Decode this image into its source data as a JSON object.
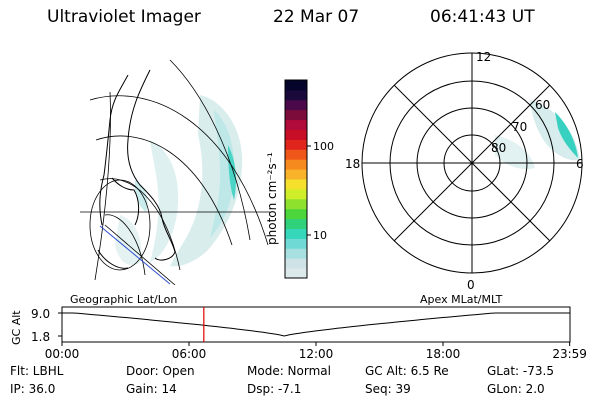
{
  "header": {
    "title": "Ultraviolet Imager",
    "date": "22 Mar 07",
    "time": "06:41:43 UT"
  },
  "colorbar": {
    "unit": "photon cm⁻²s⁻¹",
    "ticks": [
      "100",
      "10"
    ],
    "colors": [
      "#dde8ea",
      "#cfe3e6",
      "#a8e0e2",
      "#6fdad5",
      "#35d6b9",
      "#2fd27a",
      "#4cd63c",
      "#8ee22e",
      "#cfee2a",
      "#f5e12c",
      "#f8b32a",
      "#f68a1e",
      "#ee561a",
      "#e0251c",
      "#c80d26",
      "#b10b3a",
      "#7c0d3a",
      "#4a0a4a",
      "#1a0a3c",
      "#05042a"
    ]
  },
  "left_map": {
    "label": "Geographic Lat/Lon"
  },
  "right_map": {
    "label": "Apex MLat/MLT",
    "mlt_labels": {
      "top": "12",
      "left": "18",
      "right": "6",
      "bottom": "0"
    },
    "lat_labels": [
      "60",
      "70",
      "80"
    ]
  },
  "gc_plot": {
    "ylabel": "GC Alt",
    "yticks": [
      "9.0",
      "1.8"
    ],
    "xticks": [
      "00:00",
      "06:00",
      "12:00",
      "18:00",
      "23:59"
    ],
    "current_time_hours": 6.7
  },
  "info": {
    "flt": "Flt: LBHL",
    "ip": "IP: 36.0",
    "door": "Door: Open",
    "gain": "Gain: 14",
    "mode": "Mode: Normal",
    "dsp": "Dsp:    -7.1",
    "gcalt": "GC Alt: 6.5 Re",
    "seq": "Seq: 39",
    "glat": "GLat:  -73.5",
    "glon": "GLon:    2.0"
  }
}
